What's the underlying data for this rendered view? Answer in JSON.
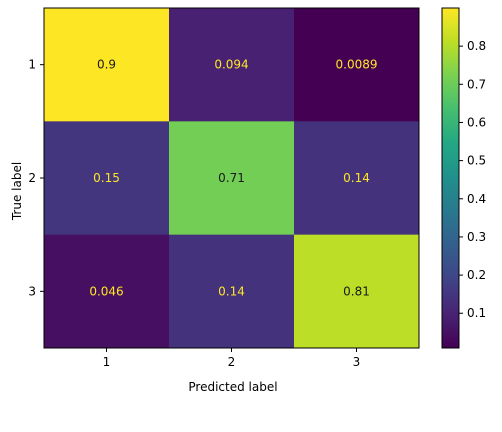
{
  "chart_data": {
    "type": "heatmap",
    "title": "",
    "xlabel": "Predicted label",
    "ylabel": "True label",
    "x_categories": [
      "1",
      "2",
      "3"
    ],
    "y_categories": [
      "1",
      "2",
      "3"
    ],
    "values": [
      [
        0.9,
        0.094,
        0.0089
      ],
      [
        0.15,
        0.71,
        0.14
      ],
      [
        0.046,
        0.14,
        0.81
      ]
    ],
    "cell_labels": [
      [
        "0.9",
        "0.094",
        "0.0089"
      ],
      [
        "0.15",
        "0.71",
        "0.14"
      ],
      [
        "0.046",
        "0.14",
        "0.81"
      ]
    ],
    "colormap": "viridis",
    "vmin": 0.0089,
    "vmax": 0.9,
    "colorbar_ticks": [
      0.1,
      0.2,
      0.3,
      0.4,
      0.5,
      0.6,
      0.7,
      0.8
    ],
    "colorbar_tick_labels": [
      "0.1",
      "0.2",
      "0.3",
      "0.4",
      "0.5",
      "0.6",
      "0.7",
      "0.8"
    ],
    "label_color_dark": "#1a1a1a",
    "label_color_light": "#fde725",
    "grid": false
  }
}
